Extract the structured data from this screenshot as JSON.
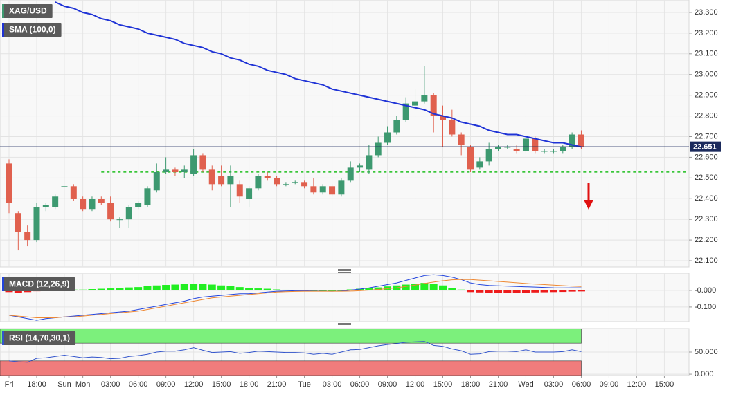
{
  "chart_data": [
    {
      "type": "candlestick",
      "title": "XAG/USD",
      "categories": [
        "Fri",
        null,
        null,
        "18:00",
        null,
        null,
        "Sun",
        null,
        "Mon",
        null,
        null,
        "03:00",
        null,
        null,
        "06:00",
        null,
        null,
        "09:00",
        null,
        null,
        "12:00",
        null,
        null,
        "15:00",
        null,
        null,
        "18:00",
        null,
        null,
        "21:00",
        null,
        null,
        "Tue",
        null,
        null,
        "03:00",
        null,
        null,
        "06:00",
        null,
        null,
        "09:00",
        null,
        null,
        "12:00",
        null,
        null,
        "15:00",
        null,
        null,
        "18:00",
        null,
        null,
        "21:00",
        null,
        null,
        "Wed",
        null,
        null,
        "03:00",
        null,
        null,
        "06:00",
        null,
        null,
        "09:00",
        null,
        null,
        "12:00",
        null,
        null,
        "15:00",
        null,
        null
      ],
      "open": [
        22.57,
        22.33,
        22.24,
        22.2,
        22.36,
        22.36,
        22.46,
        22.46,
        22.4,
        22.35,
        22.4,
        22.38,
        22.3,
        22.3,
        22.36,
        22.37,
        22.44,
        22.53,
        22.54,
        22.53,
        22.52,
        22.61,
        22.54,
        22.51,
        22.47,
        22.47,
        22.4,
        22.45,
        22.51,
        22.5,
        22.47,
        22.48,
        22.48,
        22.46,
        22.43,
        22.46,
        22.42,
        22.49,
        22.55,
        22.54,
        22.61,
        22.67,
        22.72,
        22.78,
        22.85,
        22.87,
        22.9,
        22.8,
        22.78,
        22.71,
        22.65,
        22.55,
        22.58,
        22.64,
        22.65,
        22.64,
        22.63,
        22.69,
        22.63,
        22.63,
        22.63,
        22.65,
        22.71,
        null,
        null,
        null,
        null,
        null,
        null,
        null,
        null,
        null,
        null,
        null
      ],
      "high": [
        22.59,
        22.34,
        22.27,
        22.38,
        22.38,
        22.42,
        22.46,
        22.47,
        22.41,
        22.41,
        22.41,
        22.41,
        22.31,
        22.37,
        22.39,
        22.46,
        22.57,
        22.6,
        22.55,
        22.56,
        22.64,
        22.62,
        22.56,
        22.56,
        22.56,
        22.49,
        22.46,
        22.52,
        22.53,
        22.51,
        22.48,
        22.49,
        22.49,
        22.5,
        22.47,
        22.47,
        22.5,
        22.58,
        22.57,
        22.66,
        22.7,
        22.75,
        22.8,
        22.89,
        22.93,
        23.04,
        22.91,
        22.85,
        22.83,
        22.72,
        22.66,
        22.6,
        22.67,
        22.66,
        22.66,
        22.66,
        22.7,
        22.7,
        22.64,
        22.64,
        22.66,
        22.72,
        22.73,
        null,
        null,
        null,
        null,
        null,
        null,
        null,
        null,
        null,
        null,
        null
      ],
      "low": [
        22.33,
        22.15,
        22.17,
        22.19,
        22.34,
        22.35,
        22.46,
        22.39,
        22.34,
        22.34,
        22.37,
        22.29,
        22.26,
        22.26,
        22.35,
        22.36,
        22.43,
        22.52,
        22.51,
        22.5,
        22.51,
        22.53,
        22.44,
        22.46,
        22.36,
        22.38,
        22.36,
        22.44,
        22.49,
        22.46,
        22.46,
        22.47,
        22.45,
        22.42,
        22.42,
        22.41,
        22.41,
        22.48,
        22.53,
        22.52,
        22.6,
        22.66,
        22.71,
        22.77,
        22.83,
        22.86,
        22.72,
        22.65,
        22.7,
        22.61,
        22.53,
        22.54,
        22.56,
        22.63,
        22.64,
        22.62,
        22.62,
        22.62,
        22.62,
        22.62,
        22.62,
        22.64,
        22.64,
        null,
        null,
        null,
        null,
        null,
        null,
        null,
        null,
        null,
        null,
        null
      ],
      "close": [
        22.38,
        22.24,
        22.2,
        22.36,
        22.37,
        22.41,
        22.46,
        22.4,
        22.35,
        22.4,
        22.38,
        22.3,
        22.3,
        22.36,
        22.38,
        22.45,
        22.53,
        22.54,
        22.53,
        22.54,
        22.61,
        22.54,
        22.47,
        22.47,
        22.51,
        22.41,
        22.45,
        22.51,
        22.5,
        22.47,
        22.47,
        22.48,
        22.46,
        22.43,
        22.46,
        22.42,
        22.49,
        22.55,
        22.56,
        22.61,
        22.67,
        22.72,
        22.78,
        22.86,
        22.87,
        22.9,
        22.8,
        22.78,
        22.71,
        22.66,
        22.54,
        22.58,
        22.64,
        22.65,
        22.65,
        22.63,
        22.69,
        22.63,
        22.63,
        22.63,
        22.65,
        22.71,
        22.651,
        null,
        null,
        null,
        null,
        null,
        null,
        null,
        null,
        null,
        null,
        null
      ],
      "up_color": "#3d9970",
      "down_color": "#e0604e",
      "series": [
        {
          "name": "SMA (100,0)",
          "color": "#1f33d6",
          "values": [
            null,
            null,
            null,
            null,
            null,
            23.35,
            23.33,
            23.32,
            23.3,
            23.29,
            23.27,
            23.26,
            23.24,
            23.23,
            23.22,
            23.2,
            23.19,
            23.18,
            23.17,
            23.15,
            23.14,
            23.13,
            23.11,
            23.1,
            23.08,
            23.07,
            23.05,
            23.04,
            23.02,
            23.01,
            23.0,
            22.98,
            22.97,
            22.96,
            22.95,
            22.93,
            22.92,
            22.91,
            22.9,
            22.89,
            22.88,
            22.87,
            22.86,
            22.85,
            22.84,
            22.83,
            22.81,
            22.8,
            22.79,
            22.77,
            22.76,
            22.75,
            22.73,
            22.72,
            22.71,
            22.71,
            22.7,
            22.69,
            22.68,
            22.67,
            22.67,
            22.66,
            22.65,
            null,
            null,
            null,
            null,
            null,
            null,
            null,
            null,
            null,
            null,
            null
          ]
        }
      ],
      "support_level": 22.53,
      "support_color": "#1fbf1f",
      "price_line_color": "#1b2a5c",
      "ylim": [
        22.07,
        23.36
      ],
      "yticks": [
        {
          "value": 22.1,
          "label": "22.100"
        },
        {
          "value": 22.2,
          "label": "22.200"
        },
        {
          "value": 22.3,
          "label": "22.300"
        },
        {
          "value": 22.4,
          "label": "22.400"
        },
        {
          "value": 22.5,
          "label": "22.500"
        },
        {
          "value": 22.6,
          "label": "22.600"
        },
        {
          "value": 22.7,
          "label": "22.700"
        },
        {
          "value": 22.8,
          "label": "22.800"
        },
        {
          "value": 22.9,
          "label": "22.900"
        },
        {
          "value": 23.0,
          "label": "23.000"
        },
        {
          "value": 23.1,
          "label": "23.100"
        },
        {
          "value": 23.2,
          "label": "23.200"
        },
        {
          "value": 23.3,
          "label": "23.300"
        }
      ],
      "grid": true
    },
    {
      "type": "macd",
      "title": "MACD (12,26,9)",
      "histogram": [
        -0.01,
        -0.015,
        -0.01,
        -0.005,
        0.005,
        0.005,
        0.005,
        0.005,
        0.005,
        0.008,
        0.01,
        0.012,
        0.015,
        0.018,
        0.02,
        0.025,
        0.03,
        0.033,
        0.035,
        0.038,
        0.04,
        0.038,
        0.035,
        0.03,
        0.025,
        0.02,
        0.015,
        0.012,
        0.01,
        0.006,
        0.004,
        0.003,
        0.002,
        0.001,
        0.001,
        0.001,
        0.002,
        0.006,
        0.01,
        0.014,
        0.018,
        0.024,
        0.03,
        0.035,
        0.04,
        0.045,
        0.04,
        0.03,
        0.016,
        0.005,
        -0.01,
        -0.012,
        -0.014,
        -0.014,
        -0.014,
        -0.014,
        -0.013,
        -0.012,
        -0.011,
        -0.01,
        -0.009,
        -0.007,
        -0.006,
        null,
        null,
        null,
        null,
        null,
        null,
        null,
        null,
        null,
        null,
        null
      ],
      "hist_up_color": "#22ee22",
      "hist_down_color": "#ee1c1c",
      "series": [
        {
          "color": "#2244dd",
          "values": [
            -0.15,
            -0.16,
            -0.17,
            -0.18,
            -0.17,
            -0.165,
            -0.16,
            -0.155,
            -0.15,
            -0.145,
            -0.14,
            -0.135,
            -0.13,
            -0.125,
            -0.115,
            -0.105,
            -0.095,
            -0.085,
            -0.075,
            -0.065,
            -0.05,
            -0.04,
            -0.035,
            -0.03,
            -0.025,
            -0.02,
            -0.02,
            -0.015,
            -0.01,
            -0.005,
            -0.003,
            -0.002,
            -0.002,
            -0.003,
            -0.004,
            -0.005,
            -0.003,
            0.002,
            0.008,
            0.015,
            0.025,
            0.035,
            0.045,
            0.06,
            0.075,
            0.09,
            0.095,
            0.09,
            0.08,
            0.065,
            0.045,
            0.035,
            0.03,
            0.028,
            0.026,
            0.024,
            0.022,
            0.02,
            0.018,
            0.016,
            0.015,
            0.016,
            0.016,
            null,
            null,
            null,
            null,
            null,
            null,
            null,
            null,
            null,
            null,
            null
          ]
        },
        {
          "color": "#ee8833",
          "values": [
            -0.15,
            -0.155,
            -0.16,
            -0.165,
            -0.165,
            -0.165,
            -0.16,
            -0.16,
            -0.155,
            -0.15,
            -0.145,
            -0.14,
            -0.135,
            -0.13,
            -0.125,
            -0.115,
            -0.105,
            -0.095,
            -0.085,
            -0.075,
            -0.065,
            -0.055,
            -0.045,
            -0.04,
            -0.035,
            -0.03,
            -0.025,
            -0.02,
            -0.015,
            -0.01,
            -0.008,
            -0.006,
            -0.005,
            -0.005,
            -0.005,
            -0.005,
            -0.005,
            -0.004,
            -0.002,
            0.002,
            0.006,
            0.01,
            0.016,
            0.024,
            0.032,
            0.042,
            0.05,
            0.058,
            0.064,
            0.066,
            0.065,
            0.062,
            0.058,
            0.054,
            0.05,
            0.046,
            0.042,
            0.038,
            0.035,
            0.032,
            0.029,
            0.026,
            0.024,
            null,
            null,
            null,
            null,
            null,
            null,
            null,
            null,
            null,
            null,
            null
          ]
        }
      ],
      "ylim": [
        -0.188,
        0.104
      ],
      "yticks": [
        {
          "value": -0.1,
          "label": "-0.100"
        },
        {
          "value": 0,
          "label": "-0.000"
        }
      ],
      "grid": true
    },
    {
      "type": "line",
      "title": "RSI (14,70,30,1)",
      "color": "#3355cc",
      "values": [
        30,
        28,
        27,
        36,
        37,
        40,
        43,
        40,
        37,
        39,
        38,
        35,
        36,
        40,
        42,
        45,
        50,
        52,
        52,
        55,
        60,
        54,
        49,
        50,
        51,
        47,
        49,
        52,
        51,
        50,
        49,
        49,
        48,
        45,
        47,
        45,
        50,
        55,
        56,
        60,
        64,
        67,
        69,
        72,
        73,
        74,
        65,
        63,
        57,
        53,
        45,
        46,
        51,
        52,
        52,
        51,
        55,
        50,
        50,
        50,
        51,
        55,
        51,
        null,
        null,
        null,
        null,
        null,
        null,
        null,
        null,
        null,
        null,
        null
      ],
      "overbought": 70,
      "oversold": 30,
      "overbought_color": "#7cf07c",
      "oversold_color": "#f07c7c",
      "ylim": [
        -3,
        103
      ],
      "yticks": [
        {
          "value": 0,
          "label": "0.000"
        },
        {
          "value": 50,
          "label": "50.000"
        }
      ],
      "grid": true
    }
  ]
}
